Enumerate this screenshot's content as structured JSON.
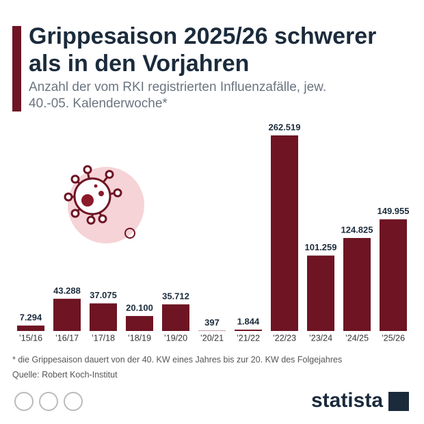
{
  "chart_data": {
    "type": "bar",
    "title": "Grippesaison 2025/26 schwerer als in den Vorjahren",
    "subtitle": "Anzahl der vom RKI registrierten Influenzafälle, jew. 40.-05. Kalenderwoche*",
    "categories": [
      "’15/16",
      "’16/17",
      "’17/18",
      "’18/19",
      "’19/20",
      "’20/21",
      "’21/22",
      "’22/23",
      "’23/24",
      "’24/25",
      "’25/26"
    ],
    "values": [
      7294,
      43288,
      37075,
      20100,
      35712,
      397,
      1844,
      262519,
      101259,
      124825,
      149955
    ],
    "value_labels": [
      "7.294",
      "43.288",
      "37.075",
      "20.100",
      "35.712",
      "397",
      "1.844",
      "262.519",
      "101.259",
      "124.825",
      "149.955"
    ],
    "color": "#6e1423",
    "footnote": "* die Grippesaison dauert von der 40. KW eines Jahres bis zur 20. KW des Folgejahres",
    "source": "Quelle: Robert Koch-Institut",
    "brand": "statista"
  }
}
